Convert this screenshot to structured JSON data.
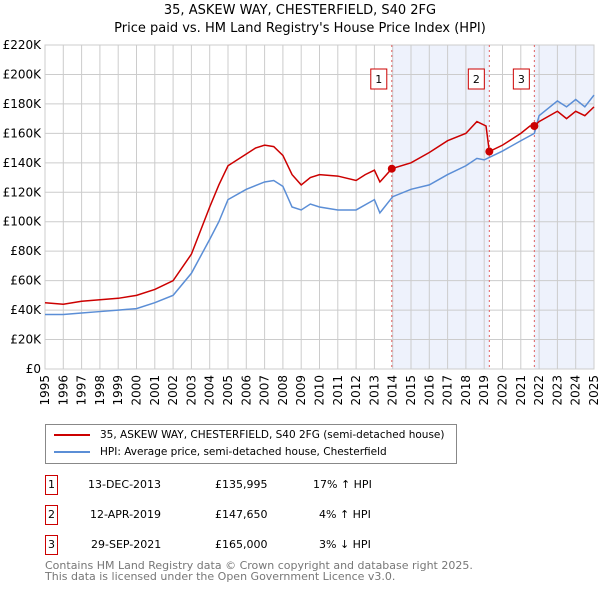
{
  "title": "35, ASKEW WAY, CHESTERFIELD, S40 2FG",
  "subtitle": "Price paid vs. HM Land Registry's House Price Index (HPI)",
  "chart_data": {
    "type": "line",
    "title": "35, ASKEW WAY, CHESTERFIELD, S40 2FG",
    "subtitle": "Price paid vs. HM Land Registry's House Price Index (HPI)",
    "xlim": [
      1995,
      2025
    ],
    "ylim": [
      0,
      220000
    ],
    "yticks": [
      0,
      20000,
      40000,
      60000,
      80000,
      100000,
      120000,
      140000,
      160000,
      180000,
      200000,
      220000
    ],
    "ytick_labels": [
      "£0",
      "£20K",
      "£40K",
      "£60K",
      "£80K",
      "£100K",
      "£120K",
      "£140K",
      "£160K",
      "£180K",
      "£200K",
      "£220K"
    ],
    "xticks": [
      "1995",
      "1996",
      "1997",
      "1998",
      "1999",
      "2000",
      "2001",
      "2002",
      "2003",
      "2004",
      "2005",
      "2006",
      "2007",
      "2008",
      "2009",
      "2010",
      "2011",
      "2012",
      "2013",
      "2014",
      "2015",
      "2016",
      "2017",
      "2018",
      "2019",
      "2020",
      "2021",
      "2022",
      "2023",
      "2024",
      "2025"
    ],
    "grid": true,
    "series": [
      {
        "name": "35, ASKEW WAY, CHESTERFIELD, S40 2FG (semi-detached house)",
        "color": "#cc0000",
        "x": [
          1995,
          1996,
          1997,
          1998,
          1999,
          2000,
          2001,
          2002,
          2003,
          2004,
          2004.5,
          2005,
          2006,
          2006.5,
          2007,
          2007.5,
          2008,
          2008.5,
          2009,
          2009.5,
          2010,
          2011,
          2012,
          2012.5,
          2013,
          2013.3,
          2013.95,
          2015,
          2016,
          2017,
          2018,
          2018.6,
          2019.1,
          2019.28,
          2020,
          2021,
          2021.5,
          2021.74,
          2022,
          2023,
          2023.5,
          2024,
          2024.5,
          2025
        ],
        "y": [
          45000,
          44000,
          46000,
          47000,
          48000,
          50000,
          54000,
          60000,
          78000,
          110000,
          125000,
          138000,
          146000,
          150000,
          152000,
          151000,
          145000,
          132000,
          125000,
          130000,
          132000,
          131000,
          128000,
          132000,
          135000,
          127000,
          135995,
          140000,
          147000,
          155000,
          160000,
          168000,
          165000,
          147650,
          152000,
          160000,
          165000,
          165000,
          168000,
          175000,
          170000,
          175000,
          172000,
          178000
        ]
      },
      {
        "name": "HPI: Average price, semi-detached house, Chesterfield",
        "color": "#5b8ed6",
        "x": [
          1995,
          1996,
          1997,
          1998,
          1999,
          2000,
          2001,
          2002,
          2003,
          2004,
          2004.5,
          2005,
          2006,
          2007,
          2007.5,
          2008,
          2008.5,
          2009,
          2009.5,
          2010,
          2011,
          2012,
          2013,
          2013.3,
          2014,
          2015,
          2016,
          2017,
          2018,
          2018.6,
          2019,
          2020,
          2021,
          2021.74,
          2022,
          2023,
          2023.5,
          2024,
          2024.5,
          2025
        ],
        "y": [
          37000,
          37000,
          38000,
          39000,
          40000,
          41000,
          45000,
          50000,
          65000,
          88000,
          100000,
          115000,
          122000,
          127000,
          128000,
          124000,
          110000,
          108000,
          112000,
          110000,
          108000,
          108000,
          115000,
          106000,
          117000,
          122000,
          125000,
          132000,
          138000,
          143000,
          142000,
          148000,
          155000,
          160000,
          172000,
          182000,
          178000,
          183000,
          178000,
          186000
        ]
      }
    ],
    "sales": [
      {
        "id": "1",
        "date": "13-DEC-2013",
        "x": 2013.95,
        "price": "£135,995",
        "value": 135995,
        "hpi": "17% ↑ HPI"
      },
      {
        "id": "2",
        "date": "12-APR-2019",
        "x": 2019.28,
        "price": "£147,650",
        "value": 147650,
        "hpi": "4% ↑ HPI"
      },
      {
        "id": "3",
        "date": "29-SEP-2021",
        "x": 2021.74,
        "price": "£165,000",
        "value": 165000,
        "hpi": "3% ↓ HPI"
      }
    ],
    "shaded_ranges": [
      [
        2013.95,
        2019.28
      ],
      [
        2021.74,
        2025
      ]
    ]
  },
  "legend": {
    "red": "35, ASKEW WAY, CHESTERFIELD, S40 2FG (semi-detached house)",
    "blue": "HPI: Average price, semi-detached house, Chesterfield"
  },
  "footer": {
    "line1": "Contains HM Land Registry data © Crown copyright and database right 2025.",
    "line2": "This data is licensed under the Open Government Licence v3.0."
  }
}
